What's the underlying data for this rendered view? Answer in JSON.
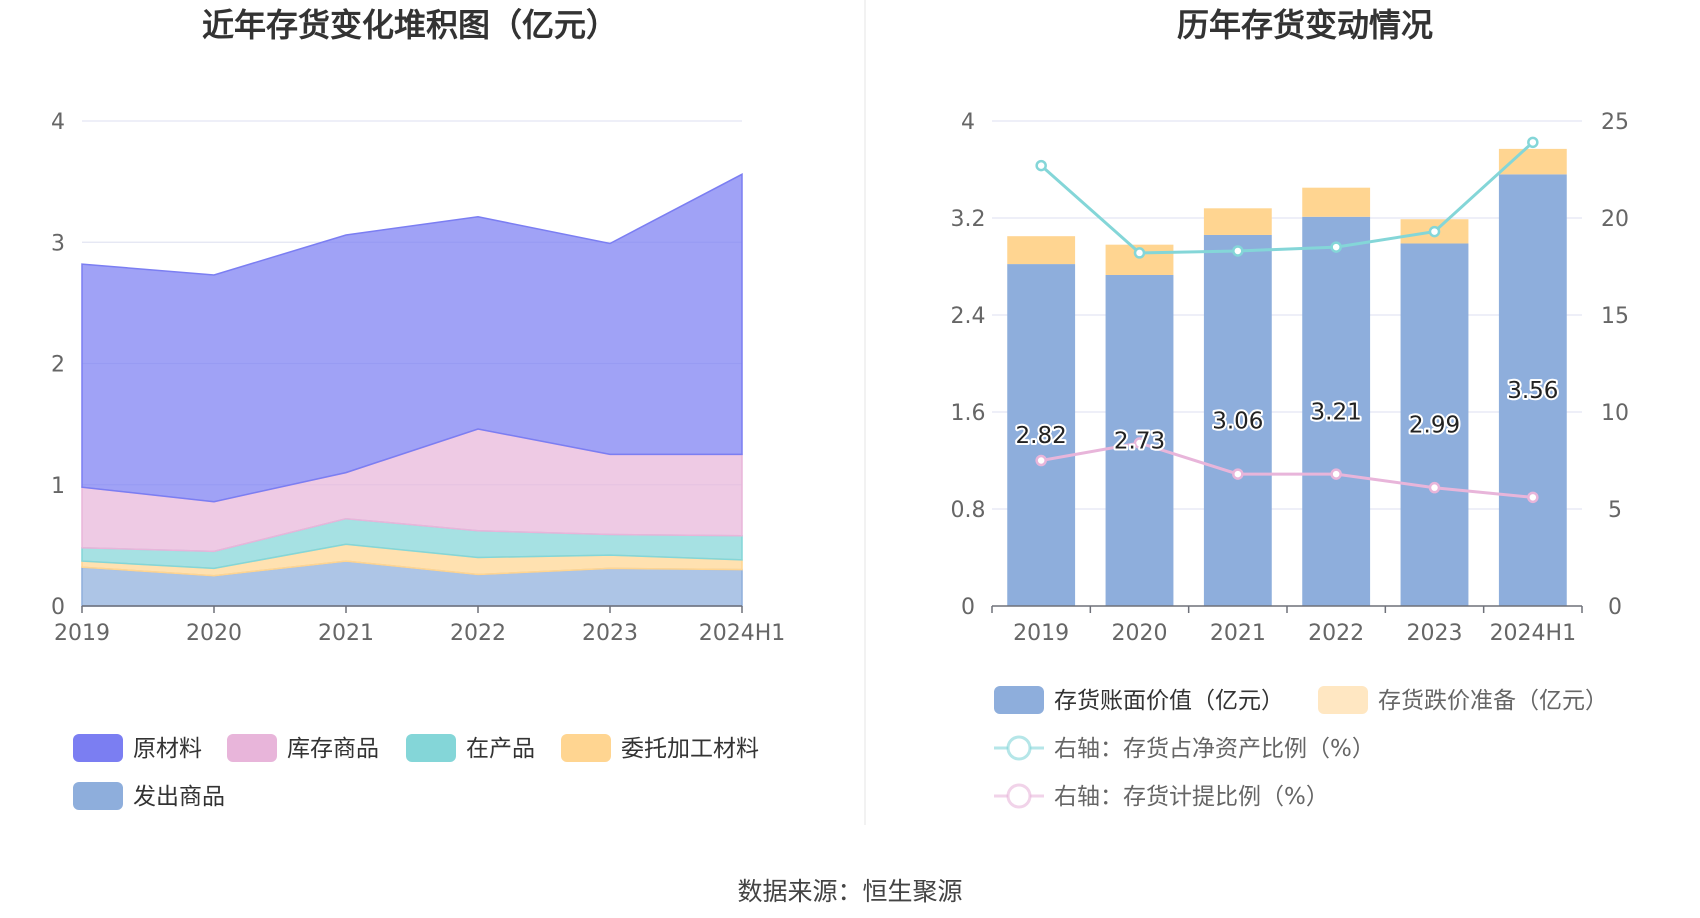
{
  "source_label": "数据来源：恒生聚源",
  "chart_data": [
    {
      "type": "area",
      "title": "近年存货变化堆积图（亿元）",
      "categories": [
        "2019",
        "2020",
        "2021",
        "2022",
        "2023",
        "2024H1"
      ],
      "ylim": [
        0,
        4
      ],
      "yticks": [
        "0",
        "1",
        "2",
        "3",
        "4"
      ],
      "stacked": true,
      "grid": true,
      "legend_position": "bottom",
      "series": [
        {
          "name": "发出商品",
          "color": "#8eaedc",
          "values": [
            0.32,
            0.25,
            0.37,
            0.26,
            0.31,
            0.3
          ]
        },
        {
          "name": "委托加工材料",
          "color": "#ffd591",
          "values": [
            0.05,
            0.06,
            0.14,
            0.14,
            0.11,
            0.08
          ]
        },
        {
          "name": "在产品",
          "color": "#84d6d8",
          "values": [
            0.11,
            0.14,
            0.21,
            0.22,
            0.17,
            0.2
          ]
        },
        {
          "name": "库存商品",
          "color": "#e8b5da",
          "values": [
            0.5,
            0.41,
            0.38,
            0.84,
            0.66,
            0.67
          ]
        },
        {
          "name": "原材料",
          "color": "#7b7ef2",
          "values": [
            1.84,
            1.87,
            1.96,
            1.75,
            1.74,
            2.31
          ]
        }
      ],
      "legend_order": [
        "原材料",
        "库存商品",
        "在产品",
        "委托加工材料",
        "发出商品"
      ]
    },
    {
      "type": "bar",
      "title": "历年存货变动情况",
      "categories": [
        "2019",
        "2020",
        "2021",
        "2022",
        "2023",
        "2024H1"
      ],
      "ylim": [
        0,
        4
      ],
      "yticks": [
        "0",
        "0.8",
        "1.6",
        "2.4",
        "3.2",
        "4"
      ],
      "y2lim": [
        0,
        25
      ],
      "y2ticks": [
        "0",
        "5",
        "10",
        "15",
        "20",
        "25"
      ],
      "grid": true,
      "legend_position": "bottom",
      "series": [
        {
          "name": "存货账面价值（亿元）",
          "kind": "bar",
          "axis": "left",
          "color": "#8eaedc",
          "values": [
            2.82,
            2.73,
            3.06,
            3.21,
            2.99,
            3.56
          ],
          "labels": [
            "2.82",
            "2.73",
            "3.06",
            "3.21",
            "2.99",
            "3.56"
          ]
        },
        {
          "name": "存货跌价准备（亿元）",
          "kind": "bar",
          "axis": "left",
          "color": "#ffd591",
          "values": [
            0.23,
            0.25,
            0.22,
            0.24,
            0.2,
            0.21
          ]
        },
        {
          "name": "右轴：存货占净资产比例（%）",
          "kind": "line",
          "axis": "right",
          "color": "#84d6d8",
          "values": [
            22.7,
            18.2,
            18.3,
            18.5,
            19.3,
            23.9
          ]
        },
        {
          "name": "右轴：存货计提比例（%）",
          "kind": "line",
          "axis": "right",
          "color": "#e8b5da",
          "values": [
            7.5,
            8.4,
            6.8,
            6.8,
            6.1,
            5.6
          ]
        }
      ]
    }
  ]
}
